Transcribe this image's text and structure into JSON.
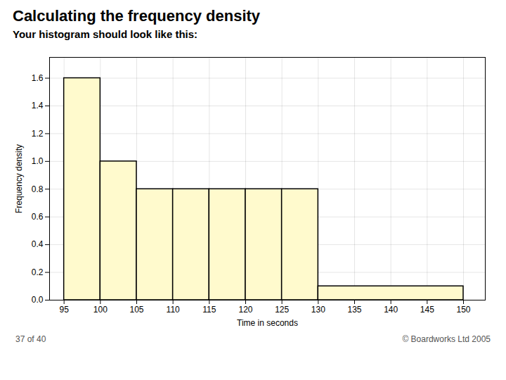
{
  "chart_data": {
    "type": "histogram",
    "title": "Calculating the frequency density",
    "subtitle": "Your histogram should look like this:",
    "xlabel": "Time in seconds",
    "ylabel": "Frequency density",
    "bins": [
      95,
      100,
      105,
      110,
      115,
      120,
      125,
      130,
      150
    ],
    "values": [
      1.6,
      1.0,
      0.8,
      0.8,
      0.8,
      0.8,
      0.8,
      0.1
    ],
    "color": "#fffacd",
    "xlim": [
      93,
      153
    ],
    "ylim": [
      0,
      1.75
    ],
    "xticks": [
      95,
      100,
      105,
      110,
      115,
      120,
      125,
      130,
      135,
      140,
      145,
      150
    ],
    "yticks": [
      {
        "value": 0,
        "label": "0.0"
      },
      0.2,
      0.4,
      0.6,
      0.8,
      {
        "value": 1.0,
        "label": "1.0"
      },
      1.2,
      1.4,
      1.6
    ],
    "grid": true,
    "annotations": [
      "37 of 40",
      "© Boardworks Ltd 2005"
    ]
  }
}
